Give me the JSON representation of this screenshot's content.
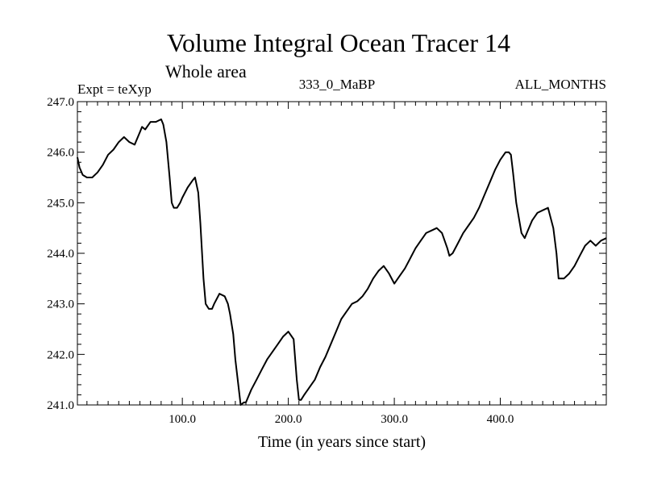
{
  "chart_data": {
    "type": "line",
    "title": "Volume Integral Ocean Tracer 14",
    "subtitle": "Whole area",
    "annotations": {
      "left": "Expt = teXyp",
      "center": "333_0_MaBP",
      "right": "ALL_MONTHS"
    },
    "xlabel": "Time (in years since start)",
    "ylabel": "",
    "xlim": [
      1,
      500
    ],
    "ylim": [
      241.0,
      247.0
    ],
    "x_ticks": [
      100,
      200,
      300,
      400
    ],
    "x_tick_labels": [
      "100.0",
      "200.0",
      "300.0",
      "400.0"
    ],
    "y_ticks": [
      241,
      242,
      243,
      244,
      245,
      246,
      247
    ],
    "y_tick_labels": [
      "241.0",
      "242.0",
      "243.0",
      "244.0",
      "245.0",
      "246.0",
      "247.0"
    ],
    "grid": false,
    "legend": "none",
    "line_color": "#000000",
    "series": [
      {
        "x": [
          1,
          3,
          6,
          10,
          15,
          20,
          25,
          30,
          35,
          40,
          45,
          50,
          55,
          60,
          62,
          65,
          70,
          75,
          80,
          82,
          85,
          88,
          90,
          92,
          95,
          98,
          100,
          105,
          110,
          112,
          115,
          117,
          120,
          122,
          125,
          128,
          130,
          135,
          140,
          143,
          145,
          148,
          150,
          155,
          158,
          160,
          165,
          170,
          175,
          180,
          185,
          190,
          195,
          200,
          205,
          208,
          210,
          212,
          215,
          220,
          225,
          230,
          235,
          240,
          245,
          250,
          255,
          260,
          265,
          270,
          275,
          280,
          285,
          290,
          295,
          300,
          305,
          310,
          315,
          320,
          325,
          330,
          335,
          340,
          345,
          350,
          352,
          355,
          360,
          365,
          370,
          375,
          380,
          385,
          390,
          395,
          400,
          405,
          408,
          410,
          412,
          415,
          420,
          423,
          425,
          430,
          435,
          440,
          445,
          450,
          453,
          455,
          460,
          465,
          470,
          475,
          480,
          485,
          490,
          495,
          500
        ],
        "y": [
          245.9,
          245.7,
          245.55,
          245.5,
          245.5,
          245.6,
          245.75,
          245.95,
          246.05,
          246.2,
          246.3,
          246.2,
          246.15,
          246.4,
          246.5,
          246.45,
          246.6,
          246.6,
          246.65,
          246.55,
          246.2,
          245.5,
          245.0,
          244.9,
          244.9,
          245.0,
          245.1,
          245.3,
          245.45,
          245.5,
          245.2,
          244.6,
          243.5,
          243.0,
          242.9,
          242.9,
          243.0,
          243.2,
          243.15,
          243.0,
          242.8,
          242.4,
          241.9,
          241.0,
          241.05,
          241.05,
          241.3,
          241.5,
          241.7,
          241.9,
          242.05,
          242.2,
          242.35,
          242.45,
          242.3,
          241.5,
          241.1,
          241.1,
          241.2,
          241.35,
          241.5,
          241.75,
          241.95,
          242.2,
          242.45,
          242.7,
          242.85,
          243.0,
          243.05,
          243.15,
          243.3,
          243.5,
          243.65,
          243.75,
          243.6,
          243.4,
          243.55,
          243.7,
          243.9,
          244.1,
          244.25,
          244.4,
          244.45,
          244.5,
          244.4,
          244.1,
          243.95,
          244.0,
          244.2,
          244.4,
          244.55,
          244.7,
          244.9,
          245.15,
          245.4,
          245.65,
          245.85,
          246.0,
          246.0,
          245.95,
          245.6,
          245.0,
          244.4,
          244.3,
          244.4,
          244.65,
          244.8,
          244.85,
          244.9,
          244.5,
          244.0,
          243.5,
          243.5,
          243.6,
          243.75,
          243.95,
          244.15,
          244.25,
          244.15,
          244.25,
          244.3
        ]
      }
    ]
  }
}
